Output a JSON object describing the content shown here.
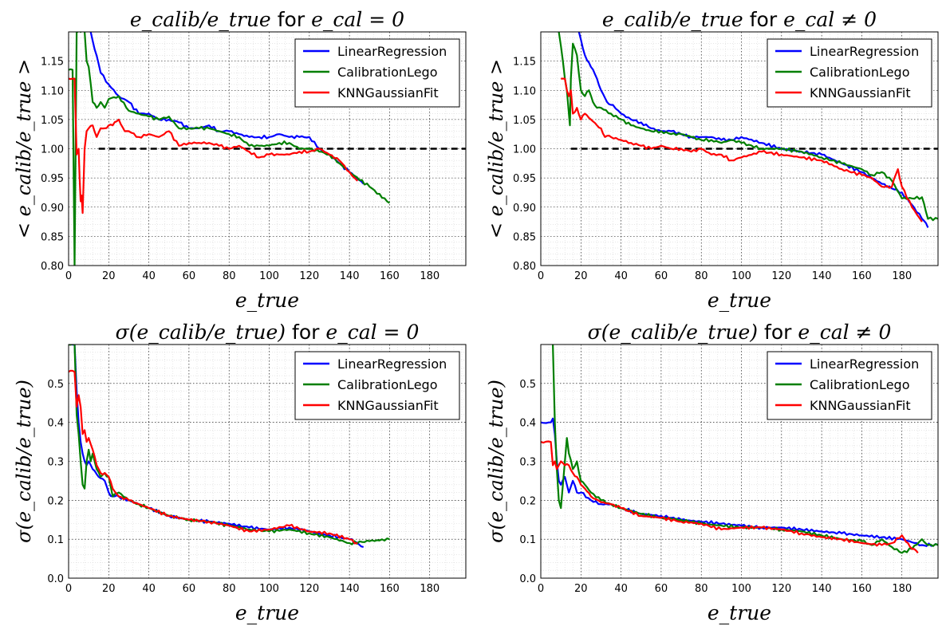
{
  "colors": {
    "LinearRegression": "#0000ff",
    "CalibrationLego": "#007f00",
    "KNNGaussianFit": "#ff0000",
    "reference": "#000000"
  },
  "chart_data": [
    {
      "type": "line",
      "title": "e_calib/e_true for e_cal = 0",
      "title_parts": {
        "math": "e_calib/e_true",
        "for": "for",
        "cond": "e_cal = 0"
      },
      "xlabel": "e_true",
      "ylabel": "< e_calib/e_true >",
      "xlim": [
        0,
        198
      ],
      "ylim": [
        0.8,
        1.2
      ],
      "xticks": [
        "0",
        "20",
        "40",
        "60",
        "80",
        "100",
        "120",
        "140",
        "160",
        "180"
      ],
      "yticks": [
        "0.80",
        "0.85",
        "0.90",
        "0.95",
        "1.00",
        "1.05",
        "1.10",
        "1.15"
      ],
      "grid": true,
      "legend": "top-right",
      "reference_line": 1.0,
      "series": [
        {
          "name": "LinearRegression",
          "x": [
            11,
            13,
            16,
            20,
            25,
            30,
            35,
            40,
            45,
            50,
            55,
            60,
            65,
            70,
            75,
            80,
            85,
            90,
            95,
            100,
            105,
            110,
            115,
            120,
            125,
            130,
            135,
            140,
            147
          ],
          "y": [
            1.2,
            1.17,
            1.13,
            1.11,
            1.09,
            1.08,
            1.06,
            1.06,
            1.05,
            1.05,
            1.045,
            1.035,
            1.035,
            1.04,
            1.03,
            1.03,
            1.025,
            1.02,
            1.02,
            1.02,
            1.025,
            1.02,
            1.02,
            1.02,
            1.0,
            0.99,
            0.975,
            0.96,
            0.94
          ]
        },
        {
          "name": "CalibrationLego",
          "x": [
            0,
            2,
            3,
            3.5,
            4,
            4.5,
            5,
            6,
            7,
            8,
            9,
            10,
            12,
            14,
            16,
            18,
            20,
            25,
            30,
            35,
            40,
            45,
            50,
            55,
            60,
            65,
            70,
            75,
            80,
            85,
            90,
            95,
            100,
            105,
            110,
            115,
            120,
            125,
            130,
            135,
            140,
            150,
            160
          ],
          "y": [
            1.135,
            1.135,
            0.8,
            1.0,
            1.2,
            1.2,
            1.25,
            1.2,
            1.25,
            1.2,
            1.15,
            1.14,
            1.08,
            1.07,
            1.08,
            1.07,
            1.085,
            1.09,
            1.065,
            1.06,
            1.055,
            1.05,
            1.055,
            1.035,
            1.035,
            1.035,
            1.035,
            1.03,
            1.025,
            1.02,
            1.005,
            1.005,
            1.005,
            1.01,
            1.01,
            1.0,
            1.0,
            0.995,
            0.99,
            0.975,
            0.96,
            0.935,
            0.907
          ]
        },
        {
          "name": "KNNGaussianFit",
          "x": [
            0,
            3,
            4,
            5,
            5.5,
            6,
            6.5,
            7,
            8,
            9,
            10,
            12,
            14,
            16,
            18,
            20,
            22,
            25,
            28,
            30,
            35,
            40,
            45,
            50,
            55,
            60,
            65,
            70,
            75,
            80,
            85,
            90,
            95,
            100,
            105,
            110,
            115,
            120,
            125,
            130,
            135,
            140,
            144
          ],
          "y": [
            1.12,
            1.12,
            0.99,
            1.0,
            0.95,
            0.91,
            0.92,
            0.89,
            1.0,
            1.03,
            1.035,
            1.04,
            1.02,
            1.035,
            1.035,
            1.04,
            1.04,
            1.05,
            1.03,
            1.03,
            1.02,
            1.025,
            1.02,
            1.03,
            1.005,
            1.01,
            1.01,
            1.01,
            1.005,
            1.0,
            1.005,
            0.995,
            0.985,
            0.99,
            0.99,
            0.99,
            0.995,
            0.995,
            1.0,
            0.99,
            0.98,
            0.96,
            0.945
          ]
        }
      ]
    },
    {
      "type": "line",
      "title": "e_calib/e_true for e_cal ≠ 0",
      "title_parts": {
        "math": "e_calib/e_true",
        "for": "for",
        "cond": "e_cal ≠ 0"
      },
      "xlabel": "e_true",
      "ylabel": "< e_calib/e_true >",
      "xlim": [
        0,
        198
      ],
      "ylim": [
        0.8,
        1.2
      ],
      "xticks": [
        "0",
        "20",
        "40",
        "60",
        "80",
        "100",
        "120",
        "140",
        "160",
        "180"
      ],
      "yticks": [
        "0.80",
        "0.85",
        "0.90",
        "0.95",
        "1.00",
        "1.05",
        "1.10",
        "1.15"
      ],
      "grid": true,
      "legend": "top-right",
      "reference_line": 1.0,
      "series": [
        {
          "name": "LinearRegression",
          "x": [
            19,
            22,
            25,
            28,
            30,
            33,
            36,
            40,
            45,
            50,
            55,
            60,
            65,
            70,
            75,
            80,
            85,
            90,
            95,
            100,
            110,
            120,
            130,
            140,
            150,
            160,
            170,
            180,
            186,
            190,
            193
          ],
          "y": [
            1.2,
            1.16,
            1.14,
            1.12,
            1.1,
            1.08,
            1.075,
            1.06,
            1.05,
            1.045,
            1.035,
            1.03,
            1.03,
            1.025,
            1.02,
            1.02,
            1.02,
            1.015,
            1.015,
            1.02,
            1.01,
            1.0,
            0.995,
            0.99,
            0.975,
            0.96,
            0.94,
            0.925,
            0.9,
            0.88,
            0.865
          ]
        },
        {
          "name": "CalibrationLego",
          "x": [
            9,
            11,
            12,
            13,
            14,
            14.5,
            15,
            16,
            18,
            20,
            22,
            24,
            26,
            28,
            30,
            35,
            40,
            45,
            50,
            55,
            60,
            65,
            70,
            75,
            80,
            85,
            90,
            95,
            100,
            110,
            120,
            130,
            140,
            150,
            160,
            165,
            170,
            175,
            180,
            185,
            190,
            193,
            198
          ],
          "y": [
            1.2,
            1.15,
            1.12,
            1.1,
            1.06,
            1.04,
            1.12,
            1.18,
            1.16,
            1.1,
            1.09,
            1.1,
            1.08,
            1.07,
            1.07,
            1.06,
            1.05,
            1.04,
            1.035,
            1.03,
            1.03,
            1.025,
            1.025,
            1.02,
            1.015,
            1.015,
            1.01,
            1.015,
            1.01,
            1.0,
            1.0,
            0.995,
            0.985,
            0.975,
            0.965,
            0.955,
            0.96,
            0.945,
            0.915,
            0.915,
            0.917,
            0.88,
            0.88
          ]
        },
        {
          "name": "KNNGaussianFit",
          "x": [
            10,
            11,
            12,
            13,
            14,
            15,
            16,
            18,
            20,
            22,
            25,
            28,
            30,
            32,
            35,
            40,
            45,
            50,
            55,
            60,
            65,
            70,
            75,
            80,
            85,
            90,
            95,
            100,
            110,
            120,
            130,
            140,
            150,
            160,
            165,
            170,
            175,
            178,
            180,
            185,
            190
          ],
          "y": [
            1.12,
            1.12,
            1.12,
            1.1,
            1.09,
            1.1,
            1.06,
            1.07,
            1.05,
            1.06,
            1.05,
            1.04,
            1.035,
            1.02,
            1.02,
            1.015,
            1.01,
            1.005,
            1.0,
            1.005,
            1.0,
            1.0,
            0.995,
            1.0,
            0.99,
            0.99,
            0.98,
            0.985,
            0.995,
            0.99,
            0.985,
            0.98,
            0.965,
            0.955,
            0.95,
            0.935,
            0.935,
            0.965,
            0.935,
            0.9,
            0.875
          ]
        }
      ]
    },
    {
      "type": "line",
      "title": "σ(e_calib/e_true) for e_cal = 0",
      "title_parts": {
        "math": "σ(e_calib/e_true)",
        "for": "for",
        "cond": "e_cal = 0"
      },
      "xlabel": "e_true",
      "ylabel": "σ(e_calib/e_true)",
      "xlim": [
        0,
        198
      ],
      "ylim": [
        0,
        0.6
      ],
      "xticks": [
        "0",
        "20",
        "40",
        "60",
        "80",
        "100",
        "120",
        "140",
        "160",
        "180"
      ],
      "yticks": [
        "0.0",
        "0.1",
        "0.2",
        "0.3",
        "0.4",
        "0.5"
      ],
      "grid": true,
      "legend": "top-right",
      "series": [
        {
          "name": "LinearRegression",
          "x": [
            0,
            3,
            4,
            5,
            6,
            7,
            8,
            9,
            10,
            12,
            15,
            18,
            20,
            22,
            25,
            30,
            35,
            40,
            50,
            60,
            70,
            80,
            90,
            100,
            110,
            120,
            130,
            140,
            147
          ],
          "y": [
            0.6,
            0.6,
            0.48,
            0.4,
            0.35,
            0.32,
            0.3,
            0.29,
            0.3,
            0.28,
            0.26,
            0.25,
            0.22,
            0.21,
            0.21,
            0.2,
            0.19,
            0.18,
            0.16,
            0.15,
            0.145,
            0.14,
            0.13,
            0.125,
            0.13,
            0.12,
            0.11,
            0.1,
            0.08
          ]
        },
        {
          "name": "CalibrationLego",
          "x": [
            0,
            3,
            4,
            5,
            6,
            7,
            8,
            9,
            10,
            11,
            12,
            14,
            16,
            18,
            20,
            22,
            25,
            30,
            35,
            40,
            50,
            60,
            70,
            80,
            90,
            100,
            110,
            120,
            130,
            140,
            150,
            160
          ],
          "y": [
            0.6,
            0.6,
            0.42,
            0.37,
            0.3,
            0.24,
            0.23,
            0.3,
            0.33,
            0.3,
            0.32,
            0.28,
            0.26,
            0.27,
            0.26,
            0.21,
            0.22,
            0.2,
            0.19,
            0.18,
            0.16,
            0.15,
            0.145,
            0.135,
            0.125,
            0.12,
            0.125,
            0.115,
            0.105,
            0.09,
            0.095,
            0.1
          ]
        },
        {
          "name": "KNNGaussianFit",
          "x": [
            0,
            3,
            4,
            5,
            6,
            7,
            8,
            9,
            10,
            12,
            14,
            16,
            18,
            20,
            22,
            25,
            30,
            35,
            40,
            50,
            60,
            70,
            80,
            90,
            100,
            110,
            120,
            130,
            140,
            144
          ],
          "y": [
            0.53,
            0.53,
            0.44,
            0.47,
            0.44,
            0.37,
            0.38,
            0.35,
            0.36,
            0.33,
            0.29,
            0.27,
            0.27,
            0.26,
            0.23,
            0.21,
            0.2,
            0.19,
            0.18,
            0.16,
            0.15,
            0.145,
            0.135,
            0.12,
            0.125,
            0.135,
            0.12,
            0.115,
            0.1,
            0.09
          ]
        }
      ]
    },
    {
      "type": "line",
      "title": "σ(e_calib/e_true) for e_cal ≠ 0",
      "title_parts": {
        "math": "σ(e_calib/e_true)",
        "for": "for",
        "cond": "e_cal ≠ 0"
      },
      "xlabel": "e_true",
      "ylabel": "σ(e_calib/e_true)",
      "xlim": [
        0,
        198
      ],
      "ylim": [
        0,
        0.6
      ],
      "xticks": [
        "0",
        "20",
        "40",
        "60",
        "80",
        "100",
        "120",
        "140",
        "160",
        "180"
      ],
      "yticks": [
        "0.0",
        "0.1",
        "0.2",
        "0.3",
        "0.4",
        "0.5"
      ],
      "grid": true,
      "legend": "top-right",
      "series": [
        {
          "name": "LinearRegression",
          "x": [
            0,
            4,
            5,
            6,
            7,
            8,
            9,
            10,
            12,
            14,
            16,
            18,
            20,
            25,
            30,
            35,
            40,
            50,
            60,
            70,
            80,
            90,
            100,
            110,
            120,
            130,
            140,
            150,
            160,
            170,
            180,
            190,
            198
          ],
          "y": [
            0.4,
            0.4,
            0.4,
            0.41,
            0.37,
            0.3,
            0.25,
            0.24,
            0.26,
            0.22,
            0.25,
            0.22,
            0.22,
            0.2,
            0.19,
            0.19,
            0.18,
            0.165,
            0.16,
            0.15,
            0.145,
            0.14,
            0.135,
            0.13,
            0.13,
            0.125,
            0.12,
            0.115,
            0.11,
            0.105,
            0.1,
            0.085,
            0.085
          ]
        },
        {
          "name": "CalibrationLego",
          "x": [
            6,
            7,
            8,
            9,
            10,
            11,
            12,
            13,
            14,
            16,
            18,
            20,
            22,
            25,
            30,
            35,
            40,
            50,
            60,
            70,
            80,
            90,
            100,
            110,
            120,
            130,
            140,
            150,
            160,
            165,
            170,
            175,
            180,
            185,
            190,
            193,
            198
          ],
          "y": [
            0.6,
            0.4,
            0.28,
            0.2,
            0.18,
            0.24,
            0.3,
            0.36,
            0.32,
            0.28,
            0.3,
            0.25,
            0.24,
            0.22,
            0.2,
            0.19,
            0.18,
            0.165,
            0.155,
            0.15,
            0.14,
            0.135,
            0.13,
            0.13,
            0.125,
            0.12,
            0.11,
            0.1,
            0.095,
            0.085,
            0.1,
            0.08,
            0.065,
            0.075,
            0.1,
            0.085,
            0.085
          ]
        },
        {
          "name": "KNNGaussianFit",
          "x": [
            0,
            5,
            6,
            7,
            8,
            9,
            10,
            12,
            14,
            16,
            18,
            20,
            22,
            25,
            30,
            35,
            40,
            50,
            60,
            70,
            80,
            90,
            100,
            110,
            120,
            130,
            140,
            150,
            160,
            170,
            175,
            180,
            183,
            185,
            188
          ],
          "y": [
            0.35,
            0.35,
            0.29,
            0.3,
            0.28,
            0.29,
            0.3,
            0.29,
            0.29,
            0.27,
            0.26,
            0.24,
            0.23,
            0.21,
            0.195,
            0.19,
            0.18,
            0.16,
            0.155,
            0.145,
            0.14,
            0.125,
            0.13,
            0.13,
            0.125,
            0.115,
            0.105,
            0.1,
            0.09,
            0.085,
            0.09,
            0.11,
            0.09,
            0.075,
            0.065
          ]
        }
      ]
    }
  ]
}
